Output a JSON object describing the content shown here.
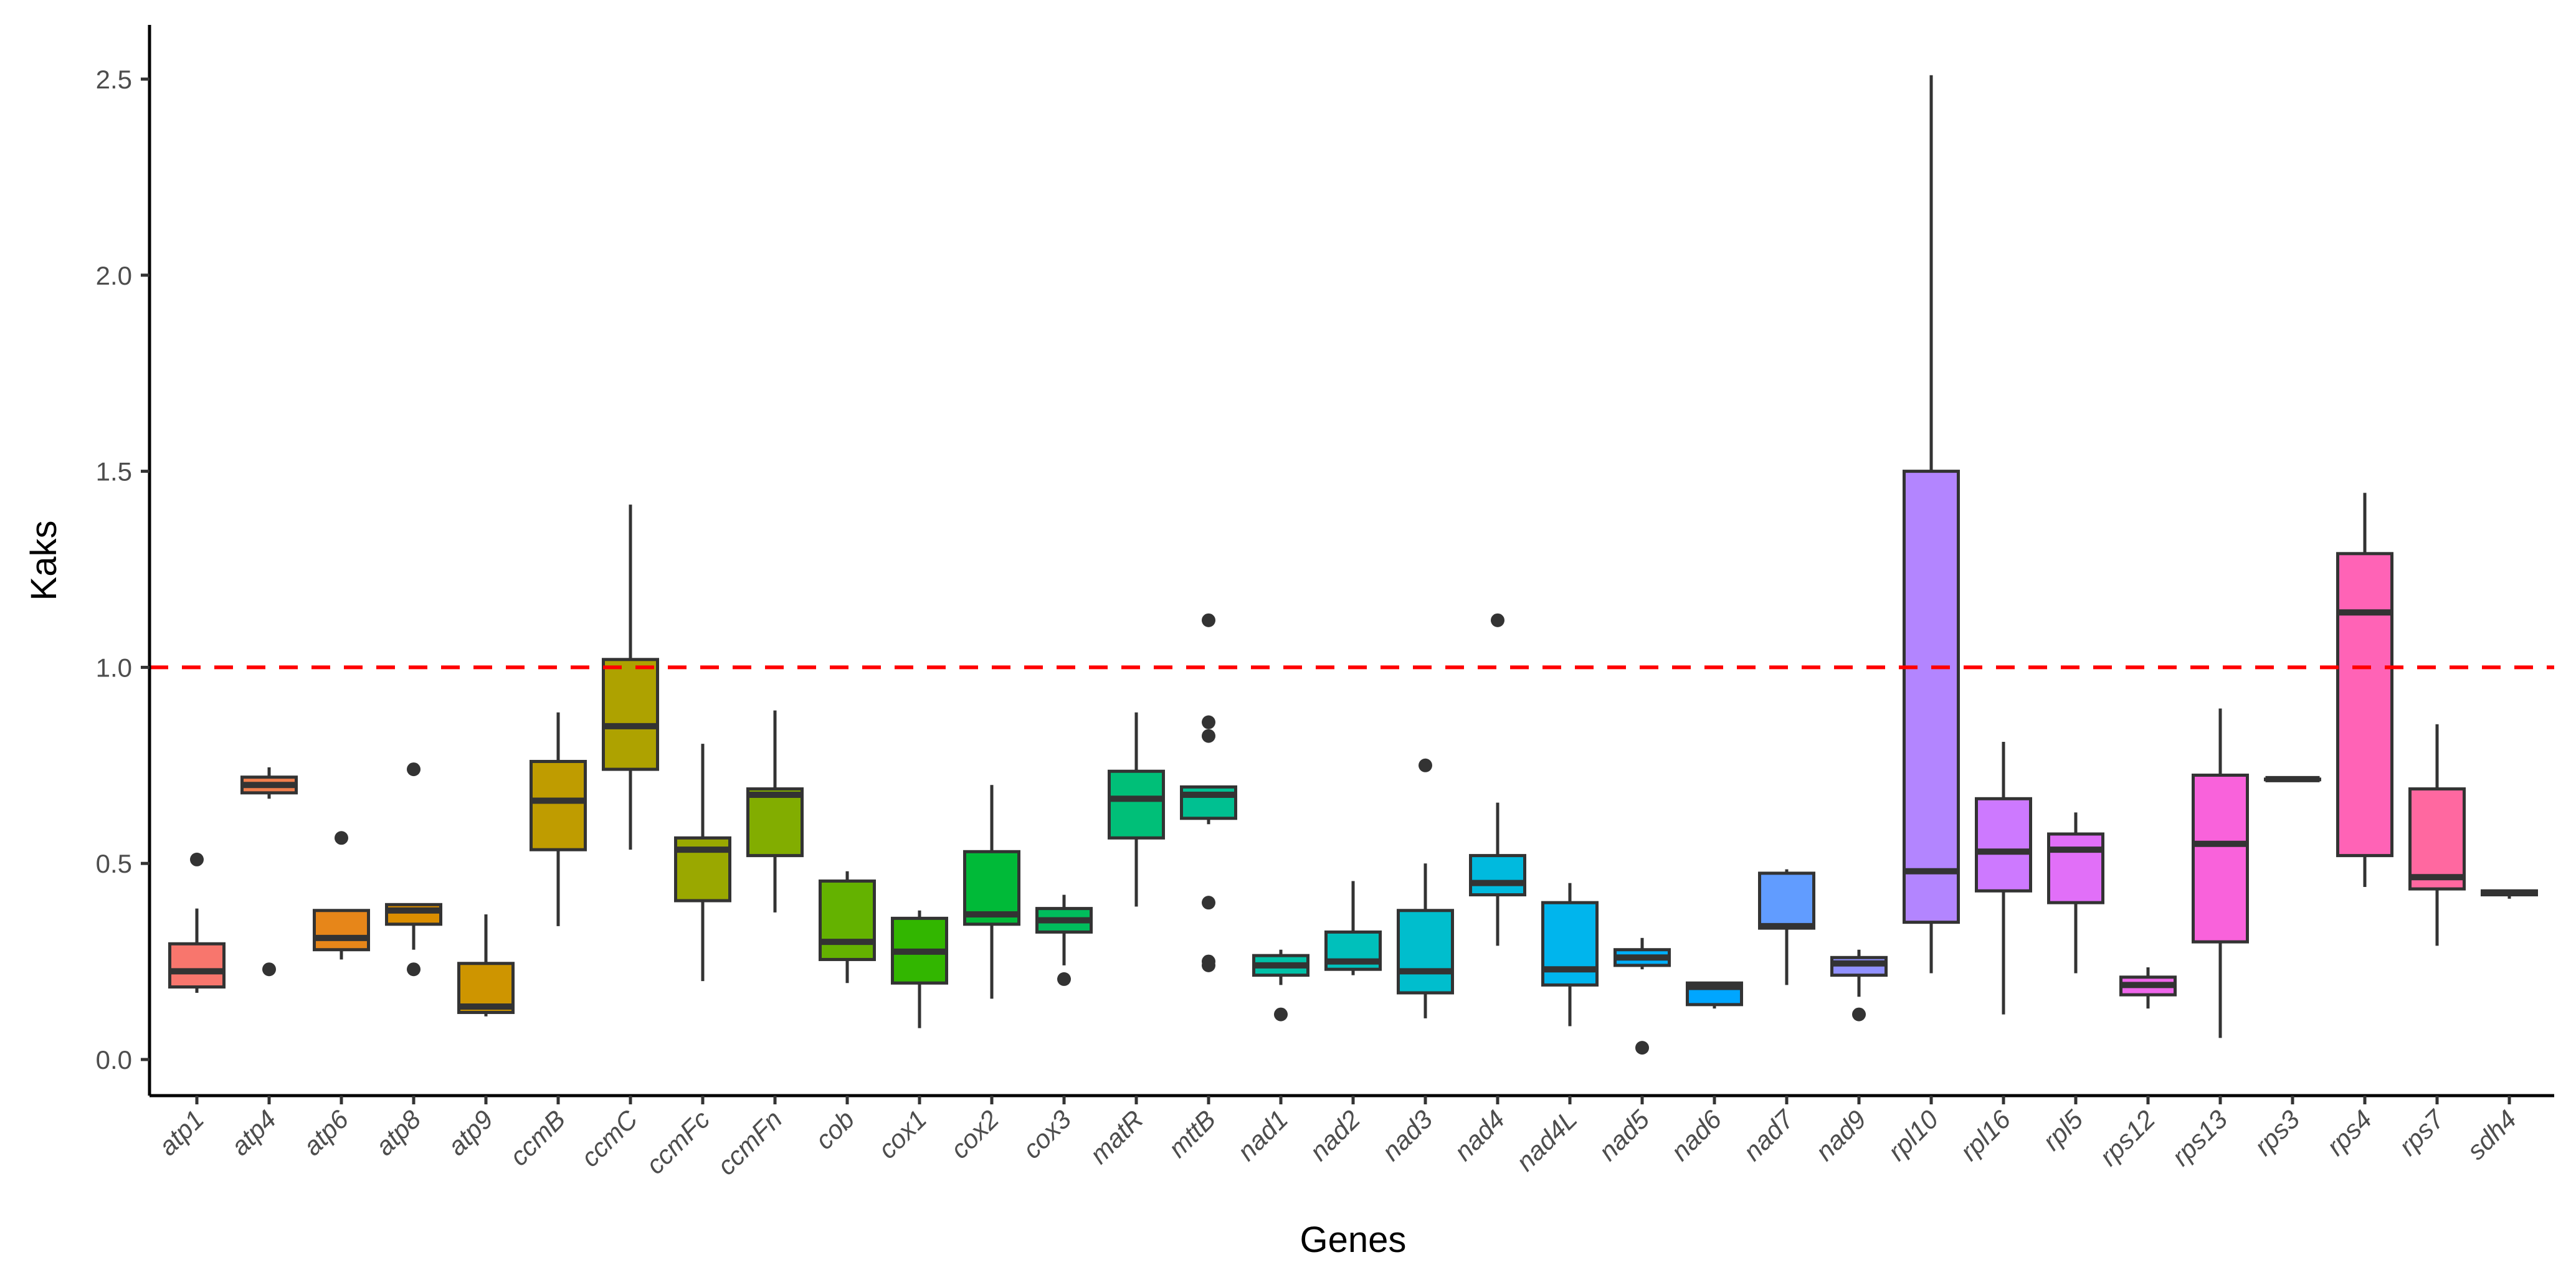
{
  "chart_data": {
    "type": "boxplot",
    "title": "",
    "xlabel": "Genes",
    "ylabel": "Kaks",
    "ylim": [
      -0.05,
      2.6
    ],
    "yticks": [
      0.0,
      0.5,
      1.0,
      1.5,
      2.0,
      2.5
    ],
    "ytick_labels": [
      "0.0",
      "0.5",
      "1.0",
      "1.5",
      "2.0",
      "2.5"
    ],
    "grid": false,
    "legend": "none",
    "reference_line": {
      "y": 1.0,
      "color": "#ff0000",
      "style": "dashed"
    },
    "palette": "ggplot hue (h 15-375, c 100, l 65)",
    "categories": [
      "atp1",
      "atp4",
      "atp6",
      "atp8",
      "atp9",
      "ccmB",
      "ccmC",
      "ccmFc",
      "ccmFn",
      "cob",
      "cox1",
      "cox2",
      "cox3",
      "matR",
      "mttB",
      "nad1",
      "nad2",
      "nad3",
      "nad4",
      "nad4L",
      "nad5",
      "nad6",
      "nad7",
      "nad9",
      "rpl10",
      "rpl16",
      "rpl5",
      "rps12",
      "rps13",
      "rps3",
      "rps4",
      "rps7",
      "sdh4"
    ],
    "boxes": [
      {
        "min": 0.17,
        "q1": 0.185,
        "median": 0.225,
        "q3": 0.295,
        "max": 0.385,
        "outliers": [
          0.51
        ]
      },
      {
        "min": 0.665,
        "q1": 0.68,
        "median": 0.7,
        "q3": 0.72,
        "max": 0.745,
        "outliers": [
          0.23
        ]
      },
      {
        "min": 0.255,
        "q1": 0.28,
        "median": 0.31,
        "q3": 0.38,
        "max": 0.38,
        "outliers": [
          0.565
        ]
      },
      {
        "min": 0.28,
        "q1": 0.345,
        "median": 0.38,
        "q3": 0.395,
        "max": 0.395,
        "outliers": [
          0.74,
          0.23
        ]
      },
      {
        "min": 0.11,
        "q1": 0.12,
        "median": 0.135,
        "q3": 0.245,
        "max": 0.37,
        "outliers": []
      },
      {
        "min": 0.34,
        "q1": 0.535,
        "median": 0.66,
        "q3": 0.76,
        "max": 0.885,
        "outliers": []
      },
      {
        "min": 0.535,
        "q1": 0.74,
        "median": 0.85,
        "q3": 1.02,
        "max": 1.415,
        "outliers": []
      },
      {
        "min": 0.2,
        "q1": 0.405,
        "median": 0.535,
        "q3": 0.565,
        "max": 0.805,
        "outliers": []
      },
      {
        "min": 0.375,
        "q1": 0.52,
        "median": 0.675,
        "q3": 0.69,
        "max": 0.89,
        "outliers": []
      },
      {
        "min": 0.195,
        "q1": 0.255,
        "median": 0.3,
        "q3": 0.455,
        "max": 0.48,
        "outliers": []
      },
      {
        "min": 0.08,
        "q1": 0.195,
        "median": 0.275,
        "q3": 0.36,
        "max": 0.38,
        "outliers": []
      },
      {
        "min": 0.155,
        "q1": 0.345,
        "median": 0.37,
        "q3": 0.53,
        "max": 0.7,
        "outliers": []
      },
      {
        "min": 0.24,
        "q1": 0.325,
        "median": 0.355,
        "q3": 0.385,
        "max": 0.42,
        "outliers": [
          0.205
        ]
      },
      {
        "min": 0.39,
        "q1": 0.565,
        "median": 0.665,
        "q3": 0.735,
        "max": 0.885,
        "outliers": []
      },
      {
        "min": 0.6,
        "q1": 0.615,
        "median": 0.675,
        "q3": 0.695,
        "max": 0.695,
        "outliers": [
          1.12,
          0.86,
          0.825,
          0.4,
          0.25,
          0.24
        ]
      },
      {
        "min": 0.19,
        "q1": 0.215,
        "median": 0.24,
        "q3": 0.265,
        "max": 0.28,
        "outliers": [
          0.115
        ]
      },
      {
        "min": 0.215,
        "q1": 0.23,
        "median": 0.25,
        "q3": 0.325,
        "max": 0.455,
        "outliers": []
      },
      {
        "min": 0.105,
        "q1": 0.17,
        "median": 0.225,
        "q3": 0.38,
        "max": 0.5,
        "outliers": [
          0.75
        ]
      },
      {
        "min": 0.29,
        "q1": 0.42,
        "median": 0.45,
        "q3": 0.52,
        "max": 0.655,
        "outliers": [
          1.12
        ]
      },
      {
        "min": 0.085,
        "q1": 0.19,
        "median": 0.23,
        "q3": 0.4,
        "max": 0.45,
        "outliers": []
      },
      {
        "min": 0.23,
        "q1": 0.24,
        "median": 0.26,
        "q3": 0.28,
        "max": 0.31,
        "outliers": [
          0.03
        ]
      },
      {
        "min": 0.13,
        "q1": 0.14,
        "median": 0.185,
        "q3": 0.195,
        "max": 0.195,
        "outliers": []
      },
      {
        "min": 0.19,
        "q1": 0.335,
        "median": 0.34,
        "q3": 0.475,
        "max": 0.485,
        "outliers": []
      },
      {
        "min": 0.16,
        "q1": 0.215,
        "median": 0.245,
        "q3": 0.26,
        "max": 0.28,
        "outliers": [
          0.115
        ]
      },
      {
        "min": 0.22,
        "q1": 0.35,
        "median": 0.48,
        "q3": 1.5,
        "max": 2.51,
        "outliers": []
      },
      {
        "min": 0.115,
        "q1": 0.43,
        "median": 0.53,
        "q3": 0.665,
        "max": 0.81,
        "outliers": []
      },
      {
        "min": 0.22,
        "q1": 0.4,
        "median": 0.535,
        "q3": 0.575,
        "max": 0.63,
        "outliers": []
      },
      {
        "min": 0.13,
        "q1": 0.165,
        "median": 0.19,
        "q3": 0.21,
        "max": 0.235,
        "outliers": []
      },
      {
        "min": 0.055,
        "q1": 0.3,
        "median": 0.55,
        "q3": 0.725,
        "max": 0.895,
        "outliers": []
      },
      {
        "min": 0.715,
        "q1": 0.715,
        "median": 0.715,
        "q3": 0.715,
        "max": 0.715,
        "outliers": []
      },
      {
        "min": 0.44,
        "q1": 0.52,
        "median": 1.14,
        "q3": 1.29,
        "max": 1.445,
        "outliers": []
      },
      {
        "min": 0.29,
        "q1": 0.435,
        "median": 0.465,
        "q3": 0.69,
        "max": 0.855,
        "outliers": []
      },
      {
        "min": 0.41,
        "q1": 0.42,
        "median": 0.425,
        "q3": 0.43,
        "max": 0.43,
        "outliers": []
      }
    ]
  }
}
